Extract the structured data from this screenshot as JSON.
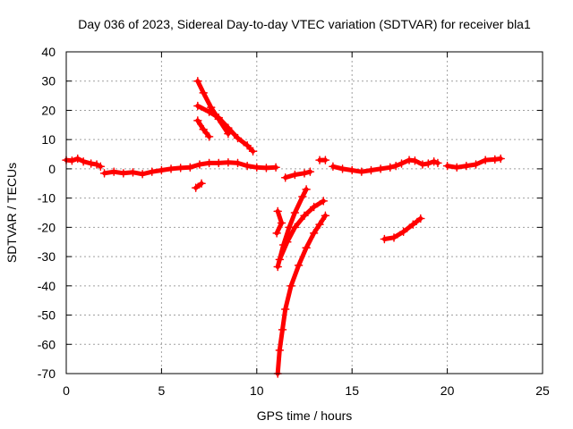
{
  "chart_data": {
    "type": "scatter",
    "title": "Day 036 of 2023, Sidereal Day-to-day VTEC variation (SDTVAR) for receiver bla1",
    "xlabel": "GPS time / hours",
    "ylabel": "SDTVAR / TECUs",
    "xlim": [
      0,
      25
    ],
    "ylim": [
      -70,
      40
    ],
    "xticks": [
      0,
      5,
      10,
      15,
      20,
      25
    ],
    "yticks": [
      -70,
      -60,
      -50,
      -40,
      -30,
      -20,
      -10,
      0,
      10,
      20,
      30,
      40
    ],
    "xtick_labels": [
      "0",
      "5",
      "10",
      "15",
      "20",
      "25"
    ],
    "ytick_labels": [
      "-70",
      "-60",
      "-50",
      "-40",
      "-30",
      "-20",
      "-10",
      "0",
      "10",
      "20",
      "30",
      "40"
    ],
    "grid": true,
    "marker": "+",
    "color": "#ff0000",
    "series": [
      {
        "name": "main-0-2h",
        "points": [
          [
            0,
            3
          ],
          [
            0.3,
            2.8
          ],
          [
            0.6,
            3.5
          ],
          [
            0.9,
            2.5
          ],
          [
            1.3,
            1.8
          ],
          [
            1.6,
            1.5
          ],
          [
            1.8,
            0.8
          ]
        ]
      },
      {
        "name": "main-2-10h",
        "points": [
          [
            2,
            -1.5
          ],
          [
            2.5,
            -1
          ],
          [
            3,
            -1.5
          ],
          [
            3.5,
            -1.2
          ],
          [
            4,
            -1.8
          ],
          [
            4.5,
            -1
          ],
          [
            5,
            -0.5
          ],
          [
            5.5,
            0
          ],
          [
            6,
            0.3
          ],
          [
            6.5,
            0.5
          ],
          [
            7,
            1.5
          ],
          [
            7.5,
            2
          ],
          [
            8,
            2
          ],
          [
            8.5,
            2.2
          ],
          [
            9,
            2
          ],
          [
            9.5,
            1
          ],
          [
            10,
            0.5
          ],
          [
            10.5,
            0.3
          ],
          [
            11,
            0.5
          ]
        ]
      },
      {
        "name": "main-11-13h",
        "points": [
          [
            11.5,
            -3
          ],
          [
            12,
            -2
          ],
          [
            12.5,
            -1.5
          ],
          [
            12.8,
            -1
          ]
        ]
      },
      {
        "name": "main-13h",
        "points": [
          [
            13.3,
            3
          ],
          [
            13.6,
            3
          ]
        ]
      },
      {
        "name": "main-14-23h",
        "points": [
          [
            14,
            0.8
          ],
          [
            14.5,
            0
          ],
          [
            15,
            -0.5
          ],
          [
            15.5,
            -1
          ],
          [
            16,
            -0.5
          ],
          [
            16.5,
            0
          ],
          [
            17,
            0.5
          ],
          [
            17.3,
            1
          ],
          [
            17.6,
            1.8
          ],
          [
            18,
            3
          ],
          [
            18.3,
            2.8
          ],
          [
            18.7,
            1.5
          ],
          [
            19,
            1.8
          ],
          [
            19.3,
            2.5
          ],
          [
            19.5,
            2
          ]
        ]
      },
      {
        "name": "main-20-23h",
        "points": [
          [
            20,
            1
          ],
          [
            20.5,
            0.5
          ],
          [
            21,
            1
          ],
          [
            21.5,
            1.5
          ],
          [
            22,
            3
          ],
          [
            22.5,
            3.2
          ],
          [
            22.8,
            3.5
          ]
        ]
      },
      {
        "name": "desc-7h-a",
        "points": [
          [
            6.9,
            30
          ],
          [
            7.2,
            26
          ],
          [
            7.6,
            21
          ],
          [
            8,
            17
          ],
          [
            8.5,
            12
          ]
        ]
      },
      {
        "name": "desc-7h-b",
        "points": [
          [
            6.9,
            21.5
          ],
          [
            7.5,
            19.5
          ],
          [
            8,
            17.5
          ],
          [
            8.5,
            14
          ],
          [
            9,
            10.5
          ],
          [
            9.5,
            8
          ],
          [
            9.8,
            6
          ]
        ]
      },
      {
        "name": "desc-7h-c",
        "points": [
          [
            6.9,
            16.5
          ],
          [
            7.2,
            13.5
          ],
          [
            7.5,
            11
          ]
        ]
      },
      {
        "name": "blob-7h",
        "points": [
          [
            6.8,
            -6.5
          ],
          [
            7.1,
            -5
          ]
        ]
      },
      {
        "name": "arc-11h-a",
        "points": [
          [
            11.1,
            -33.5
          ],
          [
            11.4,
            -26
          ],
          [
            11.7,
            -20
          ],
          [
            12,
            -15
          ],
          [
            12.4,
            -9.5
          ],
          [
            12.6,
            -7
          ]
        ]
      },
      {
        "name": "arc-11h-b",
        "points": [
          [
            11.2,
            -31
          ],
          [
            11.6,
            -25
          ],
          [
            12,
            -20
          ],
          [
            12.5,
            -16
          ],
          [
            13,
            -13
          ],
          [
            13.5,
            -11
          ]
        ]
      },
      {
        "name": "arc-11h-c",
        "points": [
          [
            11.1,
            -14.5
          ],
          [
            11.3,
            -18.5
          ],
          [
            11.05,
            -22
          ]
        ]
      },
      {
        "name": "steep-11h",
        "points": [
          [
            11.1,
            -70
          ],
          [
            11.2,
            -62
          ],
          [
            11.35,
            -55
          ],
          [
            11.5,
            -48
          ],
          [
            11.8,
            -40
          ],
          [
            12.2,
            -33
          ],
          [
            12.6,
            -27
          ],
          [
            13,
            -22
          ],
          [
            13.3,
            -19
          ],
          [
            13.6,
            -16
          ]
        ]
      },
      {
        "name": "arc-17-19h",
        "points": [
          [
            16.7,
            -24
          ],
          [
            17.2,
            -23.5
          ],
          [
            17.7,
            -21.5
          ],
          [
            18.2,
            -19
          ],
          [
            18.6,
            -17
          ]
        ]
      }
    ]
  }
}
